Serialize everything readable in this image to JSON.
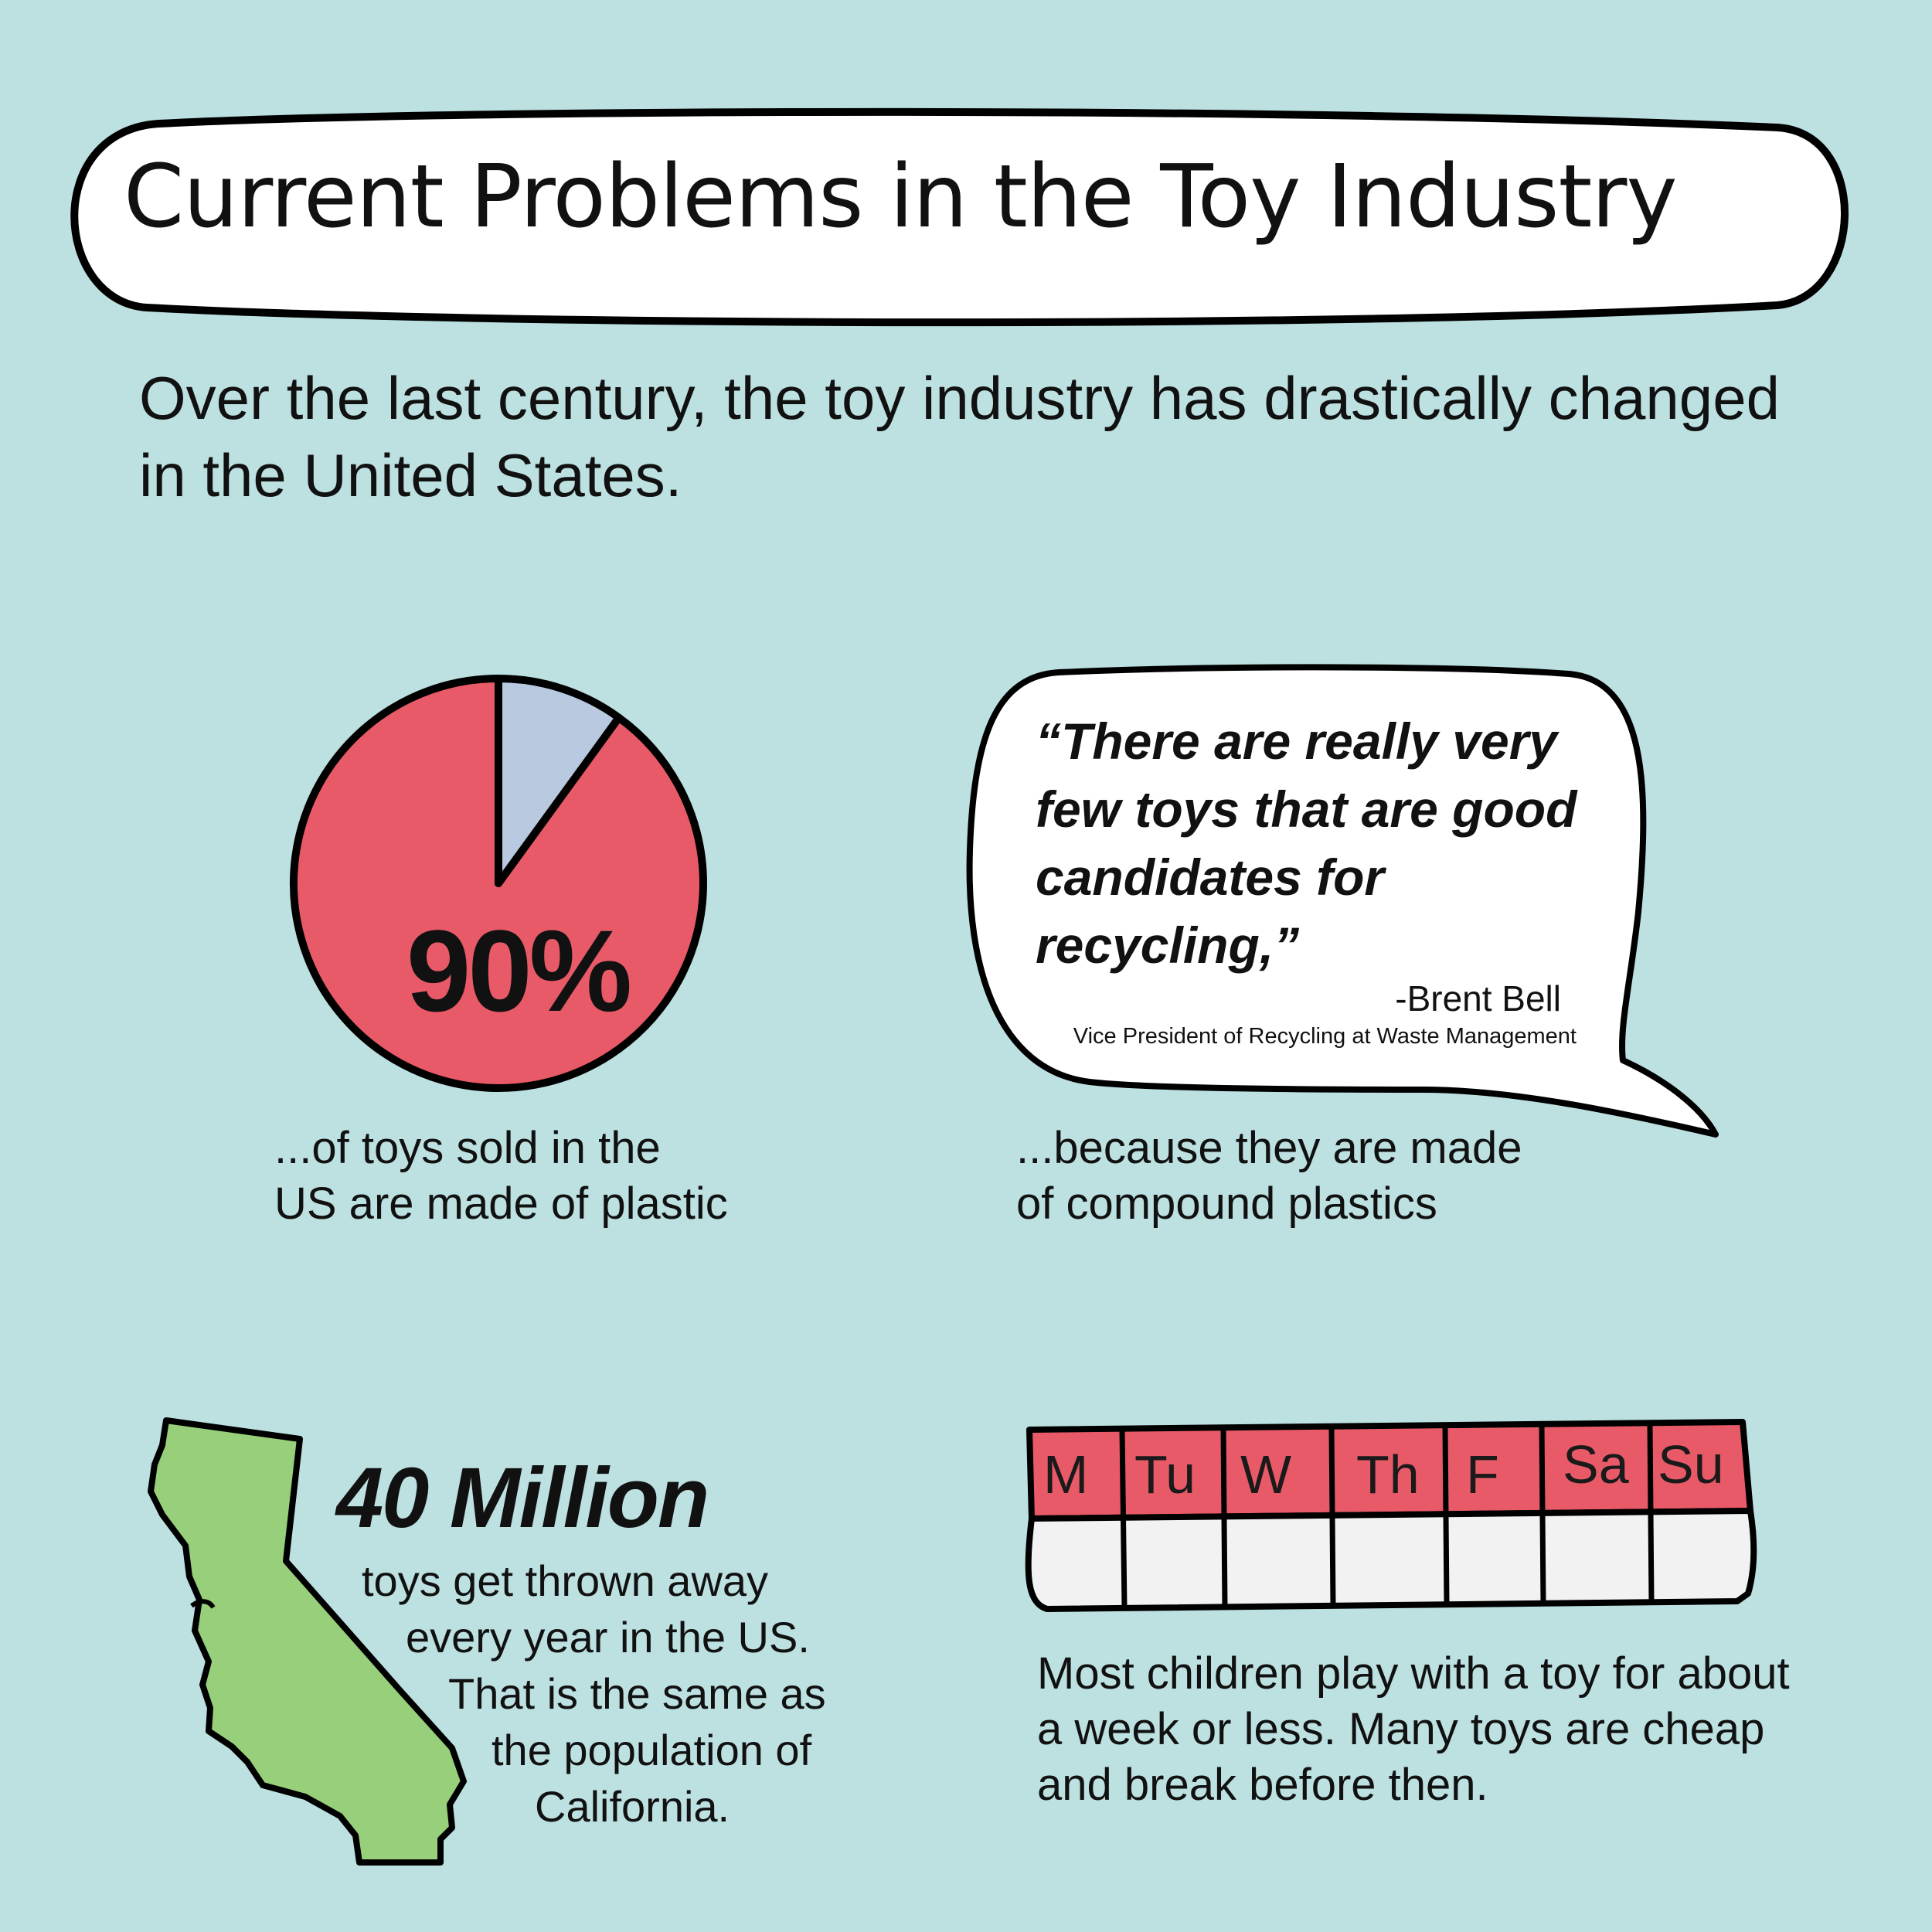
{
  "title": "Current Problems in the Toy Industry",
  "intro": "Over the last century, the toy industry has drastically changed in the United States.",
  "plastic_stat": {
    "percent_label": "90%",
    "plastic_fraction": 0.9,
    "caption_line1": "...of toys sold in the",
    "caption_line2": "US are made of plastic"
  },
  "quote": {
    "text": "“There are really very few toys that are good candidates for recycling,”",
    "author": "-Brent Bell",
    "role": "Vice President of Recycling at Waste Management",
    "caption_line1": "...because they are made",
    "caption_line2": "of compound plastics"
  },
  "thrown_away": {
    "number": "40 Million",
    "line1": "toys get thrown away",
    "line2": "every year in the US.",
    "line3": "That is the same as",
    "line4": "the population of",
    "line5": "California."
  },
  "week": {
    "days": [
      "M",
      "Tu",
      "W",
      "Th",
      "F",
      "Sa",
      "Su"
    ],
    "caption": "Most children play with a toy for about a week or less. Many toys are cheap and break before then."
  },
  "colors": {
    "background": "#bde0e1",
    "pie_plastic": "#e85a68",
    "pie_other": "#b8c9e0",
    "california": "#98cf7a",
    "calendar_header": "#e85a68",
    "calendar_cell": "#f2f2f2"
  }
}
